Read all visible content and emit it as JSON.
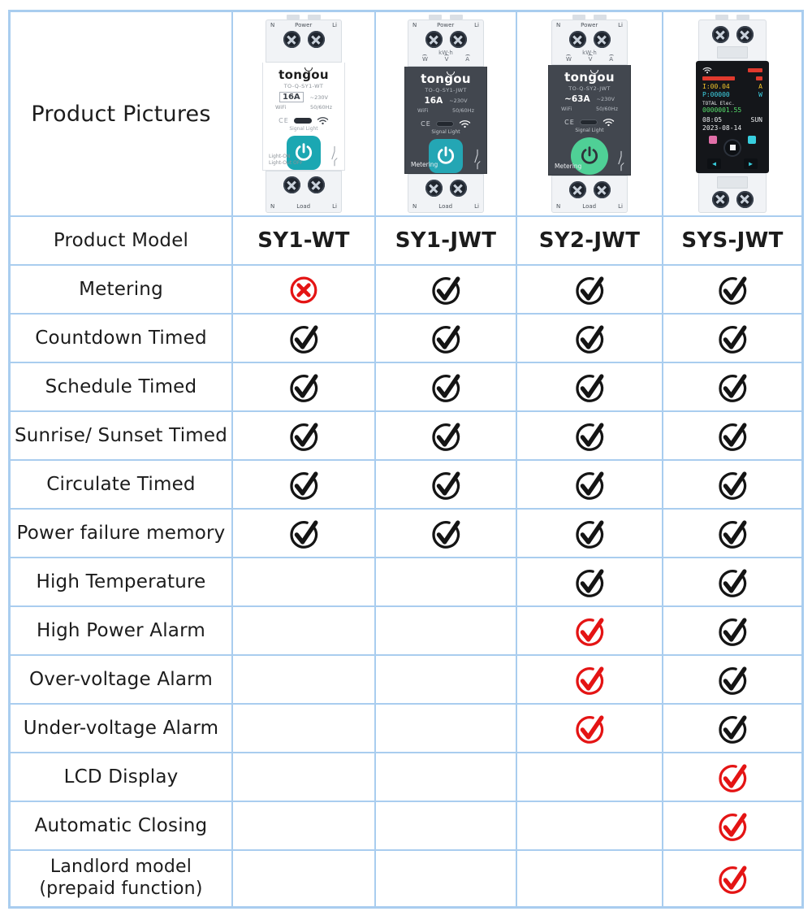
{
  "header": {
    "pictures_label": "Product Pictures",
    "model_label": "Product Model"
  },
  "colors": {
    "border": "#a9cdef",
    "check_black": "#141414",
    "check_red": "#e41414",
    "cross_red": "#e41414",
    "teal_button": "#1ba7b2",
    "green_button": "#4fd096"
  },
  "products": [
    {
      "model": "SY1-WT",
      "brand": "tongou",
      "code": "TO-Q-SY1-WT",
      "amp": "16A",
      "volt": "~230V",
      "wifi": "WiFi",
      "freq": "50/60Hz",
      "ce": "CE",
      "signal_light": "Signal Light",
      "light_on": "Light-ON",
      "light_off": "Light-Out OFF",
      "terminals_top": [
        "N",
        "Power",
        "Li"
      ],
      "terminals_bottom": [
        "N",
        "Load",
        "Li"
      ]
    },
    {
      "model": "SY1-JWT",
      "brand": "tongou",
      "code": "TO-Q-SY1-JWT",
      "amp": "16A",
      "volt": "~230V",
      "wifi": "WiFi",
      "freq": "50/60Hz",
      "ce": "CE",
      "signal_light": "Signal Light",
      "metering": "Metering",
      "kwh": "kW·h",
      "units": [
        "W",
        "V",
        "A"
      ],
      "terminals_top": [
        "N",
        "Power",
        "Li"
      ],
      "terminals_bottom": [
        "N",
        "Load",
        "Li"
      ]
    },
    {
      "model": "SY2-JWT",
      "brand": "tongou",
      "code": "TO-Q-SY2-JWT",
      "amp": "~63A",
      "volt": "~230V",
      "wifi": "WiFi",
      "freq": "50/60Hz",
      "ce": "CE",
      "signal_light": "Signal Light",
      "metering": "Metering",
      "kwh": "kW·h",
      "units": [
        "W",
        "V",
        "A"
      ],
      "terminals_top": [
        "N",
        "Power",
        "Li"
      ],
      "terminals_bottom": [
        "N",
        "Load",
        "Li"
      ]
    },
    {
      "model": "SYS-JWT",
      "screen": {
        "current_v": "I:00.04",
        "current_u": "A",
        "power_v": "P:00000",
        "power_u": "W",
        "total_label": "TOTAL Elec.",
        "total": "0000001.55",
        "time_v": "08:05",
        "time_u": "SUN",
        "date": "2023-08-14"
      }
    }
  ],
  "features": [
    {
      "label": "Metering",
      "cells": [
        "cross",
        "check",
        "check",
        "check"
      ]
    },
    {
      "label": "Countdown Timed",
      "cells": [
        "check",
        "check",
        "check",
        "check"
      ]
    },
    {
      "label": "Schedule Timed",
      "cells": [
        "check",
        "check",
        "check",
        "check"
      ]
    },
    {
      "label": "Sunrise/ Sunset Timed",
      "cells": [
        "check",
        "check",
        "check",
        "check"
      ]
    },
    {
      "label": "Circulate Timed",
      "cells": [
        "check",
        "check",
        "check",
        "check"
      ]
    },
    {
      "label": "Power failure memory",
      "cells": [
        "check",
        "check",
        "check",
        "check"
      ]
    },
    {
      "label": "High Temperature",
      "cells": [
        "",
        "",
        "check",
        "check"
      ]
    },
    {
      "label": "High Power Alarm",
      "cells": [
        "",
        "",
        "check-red",
        "check"
      ]
    },
    {
      "label": "Over-voltage Alarm",
      "cells": [
        "",
        "",
        "check-red",
        "check"
      ]
    },
    {
      "label": "Under-voltage Alarm",
      "cells": [
        "",
        "",
        "check-red",
        "check"
      ]
    },
    {
      "label": "LCD Display",
      "cells": [
        "",
        "",
        "",
        "check-red"
      ]
    },
    {
      "label": "Automatic Closing",
      "cells": [
        "",
        "",
        "",
        "check-red"
      ]
    },
    {
      "label": "Landlord model",
      "label2": "(prepaid function)",
      "cells": [
        "",
        "",
        "",
        "check-red"
      ]
    }
  ]
}
